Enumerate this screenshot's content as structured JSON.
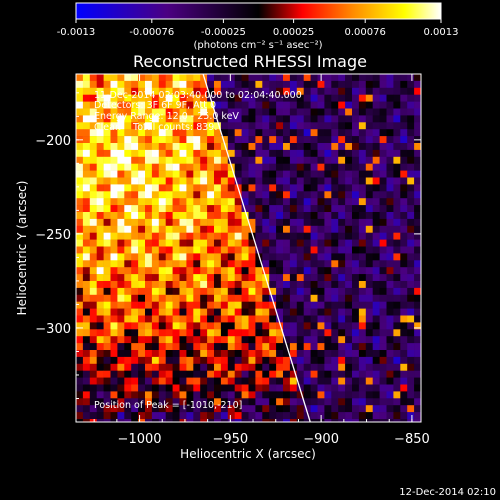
{
  "colorbar": {
    "tick_labels": [
      "-0.0013",
      "-0.00076",
      "-0.00025",
      "0.00025",
      "0.00076",
      "0.0013"
    ],
    "tick_values": [
      -0.0013,
      -0.00076,
      -0.00025,
      0.00025,
      0.00076,
      0.0013
    ],
    "range": [
      -0.0013,
      0.0013
    ],
    "units": "(photons cm⁻² s⁻¹ asec⁻²)",
    "colormap": [
      "#0000ff",
      "#4b0082",
      "#000000",
      "#ff0000",
      "#ff8c00",
      "#ffff00",
      "#ffffff"
    ]
  },
  "chart_data": {
    "type": "heatmap",
    "title": "Reconstructed RHESSI Image",
    "xlabel": "Heliocentric X (arcsec)",
    "ylabel": "Heliocentric Y (arcsec)",
    "xlim": [
      -1035,
      -845
    ],
    "ylim": [
      -350,
      -165
    ],
    "x_ticks": [
      -1000,
      -950,
      -900,
      -850
    ],
    "x_tick_labels": [
      "−1000",
      "−950",
      "−900",
      "−850"
    ],
    "y_ticks": [
      -300,
      -250,
      -200
    ],
    "y_tick_labels": [
      "−300",
      "−250",
      "−200"
    ],
    "grid": false,
    "limb_line": {
      "x": [
        -965,
        -906
      ],
      "y": [
        -165,
        -350
      ]
    },
    "peak": {
      "x": -1010,
      "y": -210
    },
    "annotations": [
      "11-Dec-2014 02:03:40.000 to 02:04:40.000",
      "Detectors: 3F 6F 9F, Att 0",
      "Energy Range: 12.0 - 25.0 keV",
      "Clean    Total counts: 839.",
      "Position of Peak = [-1010,-210]"
    ]
  },
  "footer_timestamp": "12-Dec-2014 02:10"
}
